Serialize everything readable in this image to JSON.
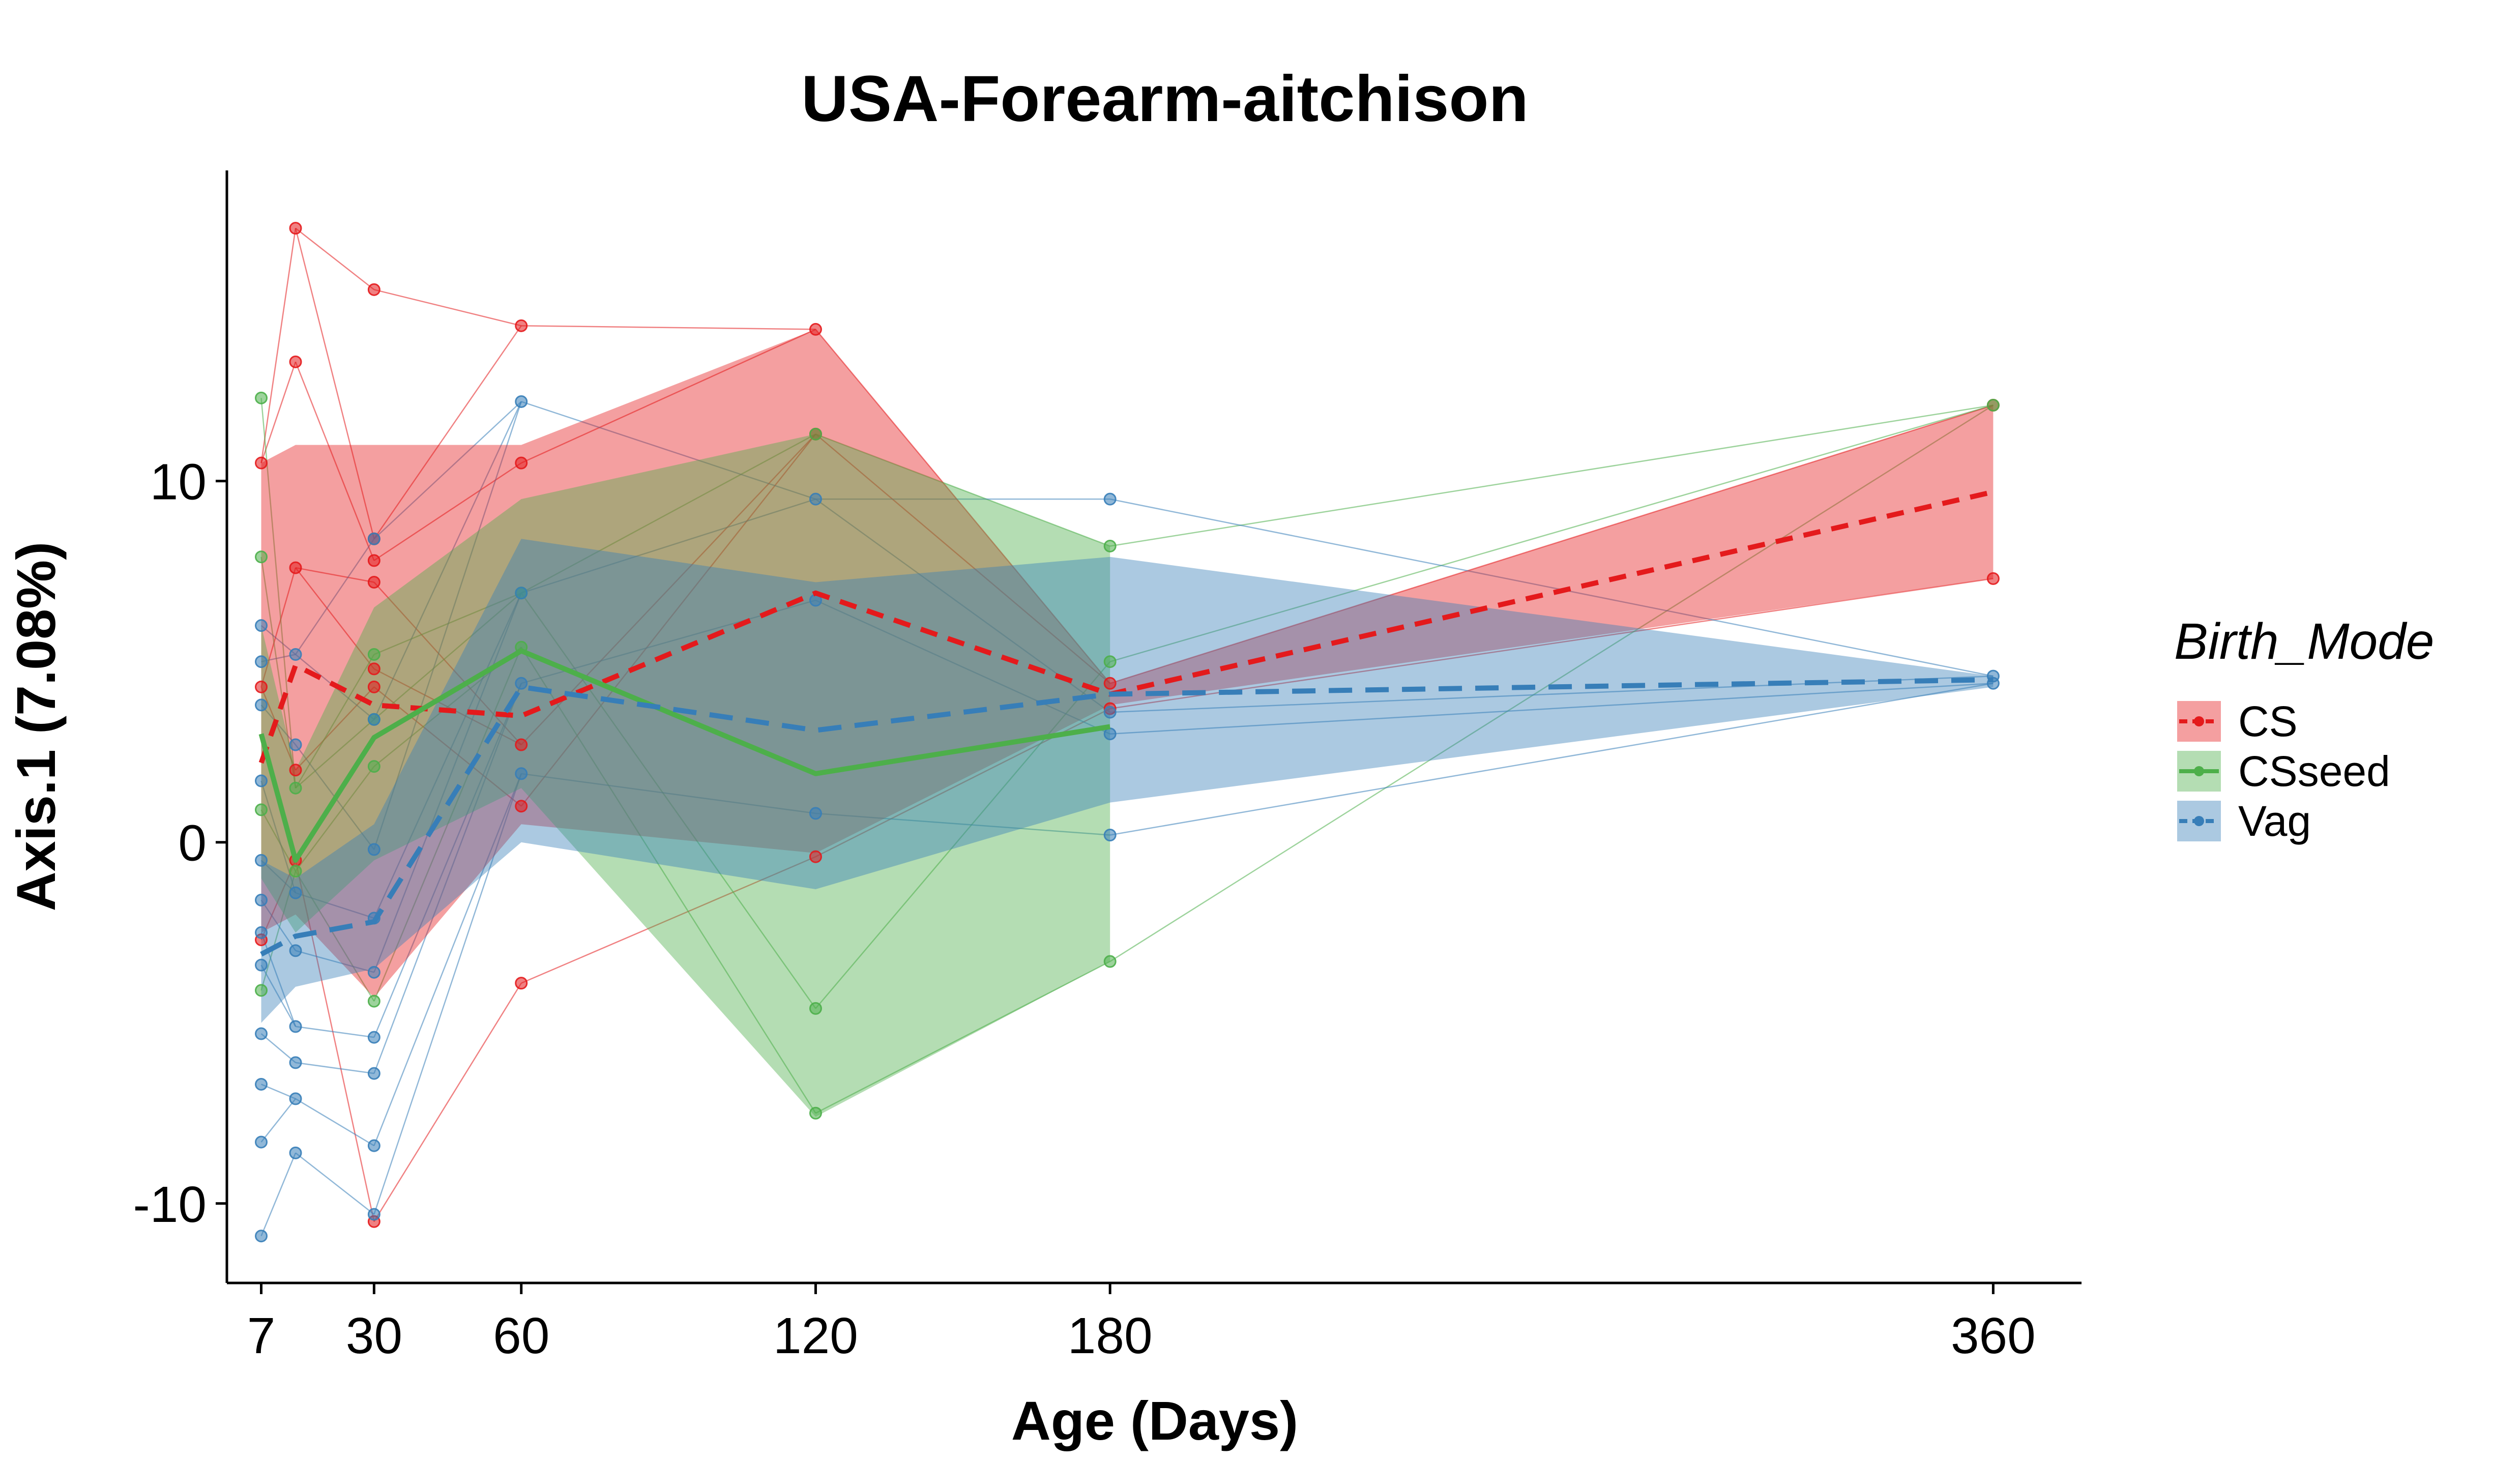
{
  "chart_data": {
    "type": "line",
    "title": "USA-Forearm-aitchison",
    "xlabel": "Age (Days)",
    "ylabel": "Axis.1 (7.08%)",
    "x_ticks": [
      7,
      30,
      60,
      120,
      180,
      360
    ],
    "y_ticks": [
      -10,
      0,
      10
    ],
    "y_tick_labels": [
      "-10",
      "0",
      "10"
    ],
    "xlim": [
      0,
      378
    ],
    "ylim": [
      -12.2,
      18.6
    ],
    "legend": {
      "title": "Birth_Mode",
      "position": "right"
    },
    "grid": false,
    "colors": {
      "CS": "#E41A1C",
      "CSseed": "#4DAF4A",
      "Vag": "#377EB8"
    },
    "series": [
      {
        "name": "CS",
        "color": "#E41A1C",
        "mean_line": {
          "x": [
            7,
            14,
            30,
            60,
            120,
            180,
            360
          ],
          "y": [
            2.2,
            4.9,
            3.8,
            3.5,
            6.9,
            4.1,
            9.7
          ]
        },
        "ribbon": {
          "x": [
            7,
            14,
            30,
            60,
            120,
            180,
            360
          ],
          "upper": [
            10.5,
            11.0,
            11.0,
            11.0,
            14.2,
            4.4,
            12.1
          ],
          "lower": [
            -2.5,
            -2.0,
            -4.3,
            0.5,
            -0.3,
            3.8,
            7.3
          ]
        },
        "points": {
          "x": [
            7,
            7,
            7,
            14,
            14,
            14,
            14,
            14,
            30,
            30,
            30,
            30,
            30,
            30,
            30,
            60,
            60,
            60,
            60,
            60,
            120,
            120,
            120,
            180,
            180,
            360,
            360
          ],
          "y": [
            10.5,
            4.3,
            -2.7,
            17.0,
            13.3,
            7.6,
            2.0,
            -0.5,
            15.3,
            8.4,
            7.8,
            7.2,
            4.8,
            4.3,
            -10.5,
            14.3,
            10.5,
            2.7,
            1.0,
            -3.9,
            14.2,
            11.3,
            -0.4,
            4.4,
            3.7,
            12.1,
            7.3
          ]
        }
      },
      {
        "name": "CSseed",
        "color": "#4DAF4A",
        "mean_line": {
          "x": [
            7,
            14,
            30,
            60,
            120,
            180
          ],
          "y": [
            3.0,
            -0.5,
            2.9,
            5.3,
            1.9,
            3.2
          ]
        },
        "ribbon": {
          "x": [
            7,
            14,
            30,
            60,
            120,
            180
          ],
          "upper": [
            6.0,
            2.0,
            6.5,
            9.5,
            11.3,
            8.2
          ],
          "lower": [
            -1.0,
            -2.5,
            -0.5,
            1.5,
            -7.6,
            -3.3
          ]
        },
        "points": {
          "x": [
            7,
            7,
            7,
            7,
            14,
            14,
            30,
            30,
            30,
            30,
            60,
            60,
            120,
            120,
            120,
            180,
            180,
            180,
            360
          ],
          "y": [
            12.3,
            7.9,
            0.9,
            -4.1,
            1.5,
            -0.8,
            5.2,
            3.4,
            2.1,
            -4.4,
            6.9,
            5.4,
            11.3,
            -4.6,
            -7.5,
            8.2,
            5.0,
            -3.3,
            12.1
          ]
        }
      },
      {
        "name": "Vag",
        "color": "#377EB8",
        "mean_line": {
          "x": [
            7,
            14,
            30,
            60,
            120,
            180,
            360
          ],
          "y": [
            -3.1,
            -2.6,
            -2.2,
            4.3,
            3.1,
            4.1,
            4.5
          ]
        },
        "ribbon": {
          "x": [
            7,
            14,
            30,
            60,
            120,
            180,
            360
          ],
          "upper": [
            -0.5,
            -1.0,
            0.5,
            8.4,
            7.2,
            7.9,
            4.6
          ],
          "lower": [
            -5.0,
            -4.0,
            -3.5,
            0.0,
            -1.3,
            1.1,
            4.3
          ]
        },
        "points": {
          "x": [
            7,
            7,
            7,
            7,
            7,
            7,
            7,
            7,
            7,
            7,
            7,
            7,
            14,
            14,
            14,
            14,
            14,
            14,
            14,
            14,
            30,
            30,
            30,
            30,
            30,
            30,
            30,
            30,
            30,
            60,
            60,
            60,
            60,
            120,
            120,
            120,
            180,
            180,
            180,
            180,
            360,
            360
          ],
          "y": [
            6.0,
            5.0,
            3.8,
            1.7,
            -0.5,
            -1.6,
            -2.5,
            -3.4,
            -5.3,
            -6.7,
            -8.3,
            -10.9,
            5.2,
            2.7,
            -1.4,
            -3.0,
            -5.1,
            -6.1,
            -7.1,
            -8.6,
            8.4,
            3.4,
            -0.2,
            -2.1,
            -3.6,
            -5.4,
            -6.4,
            -8.4,
            -10.3,
            12.2,
            6.9,
            4.4,
            1.9,
            9.5,
            6.7,
            0.8,
            9.5,
            3.6,
            3.0,
            0.2,
            4.6,
            4.4
          ]
        }
      }
    ]
  }
}
